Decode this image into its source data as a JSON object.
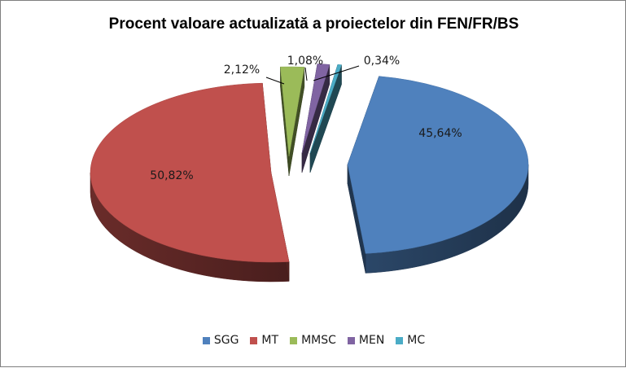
{
  "chart_data": {
    "type": "pie",
    "title": "Procent valoare actualizată a proiectelor din FEN/FR/BS",
    "categories": [
      "SGG",
      "MT",
      "MMSC",
      "MEN",
      "MC"
    ],
    "values": [
      45.64,
      50.82,
      2.12,
      1.08,
      0.34
    ],
    "value_labels": [
      "45,64%",
      "50,82%",
      "2,12%",
      "1,08%",
      "0,34%"
    ],
    "colors": [
      "#4f81bd",
      "#c0504d",
      "#9bbb59",
      "#8064a2",
      "#4bacc6"
    ],
    "legend_position": "bottom",
    "style": "3d-exploded"
  }
}
